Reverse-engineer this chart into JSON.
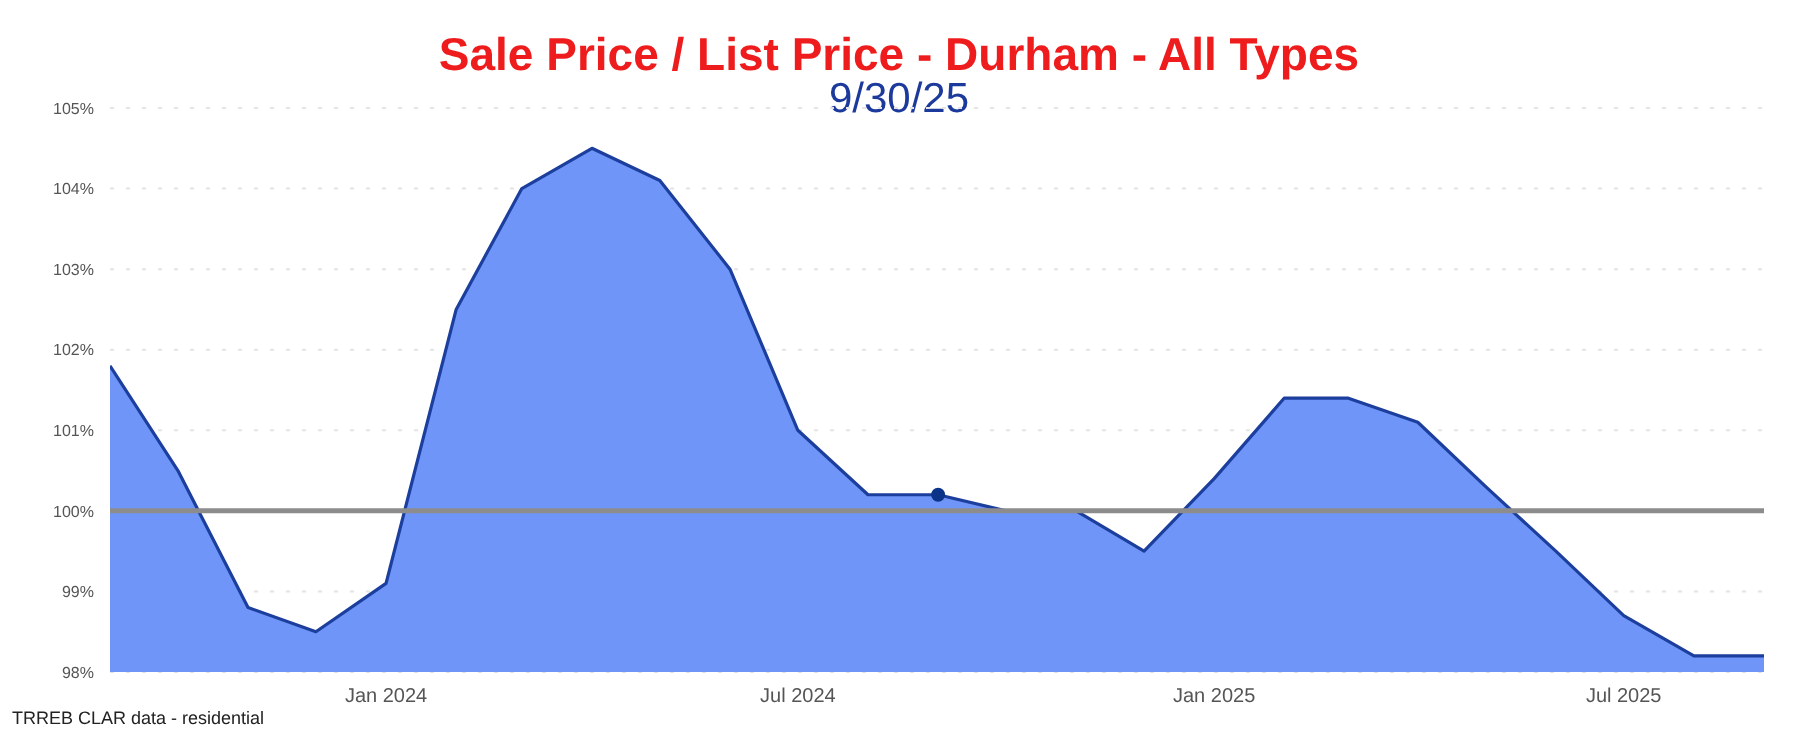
{
  "chart_data": {
    "type": "area",
    "title": "Sale Price / List Price - Durham - All Types",
    "subtitle": "9/30/25",
    "x": [
      "2023-09",
      "2023-10",
      "2023-11",
      "2023-12",
      "2024-01",
      "2024-02",
      "2024-03",
      "2024-04",
      "2024-05",
      "2024-06",
      "2024-07",
      "2024-08",
      "2024-09",
      "2024-10",
      "2024-11",
      "2024-12",
      "2025-01",
      "2025-02",
      "2025-03",
      "2025-04",
      "2025-05",
      "2025-06",
      "2025-07",
      "2025-08",
      "2025-09"
    ],
    "series": [
      {
        "color": "#1c3f9e",
        "values": [
          101.8,
          100.5,
          98.8,
          98.5,
          99.1,
          102.5,
          104.0,
          104.5,
          104.1,
          103.0,
          101.0,
          100.2,
          100.2,
          100.0,
          100.0,
          99.5,
          100.4,
          101.4,
          101.4,
          101.1,
          100.3,
          99.5,
          98.7,
          98.2,
          98.2
        ]
      },
      {
        "type": "scatter",
        "color": "#0b3488",
        "x": [
          "2024-09"
        ],
        "values": [
          100.2
        ]
      }
    ],
    "xlim": [
      "2023-09",
      "2025-09"
    ],
    "xticks": [
      {
        "value": "2024-01",
        "label": "Jan 2024"
      },
      {
        "value": "2024-07",
        "label": "Jul 2024"
      },
      {
        "value": "2025-01",
        "label": "Jan 2025"
      },
      {
        "value": "2025-07",
        "label": "Jul 2025"
      }
    ],
    "ylim": [
      98,
      105
    ],
    "yticks": [
      {
        "value": 98,
        "label": "98%"
      },
      {
        "value": 99,
        "label": "99%"
      },
      {
        "value": 100,
        "label": "100%"
      },
      {
        "value": 101,
        "label": "101%"
      },
      {
        "value": 102,
        "label": "102%"
      },
      {
        "value": 103,
        "label": "103%"
      },
      {
        "value": 104,
        "label": "104%"
      },
      {
        "value": 105,
        "label": "105%"
      }
    ],
    "ref_lines": [
      {
        "axis": "y",
        "value": 100,
        "color": "#8c8c8c"
      }
    ],
    "grid": "y",
    "annotations": [
      "TRREB CLAR data - residential"
    ]
  }
}
